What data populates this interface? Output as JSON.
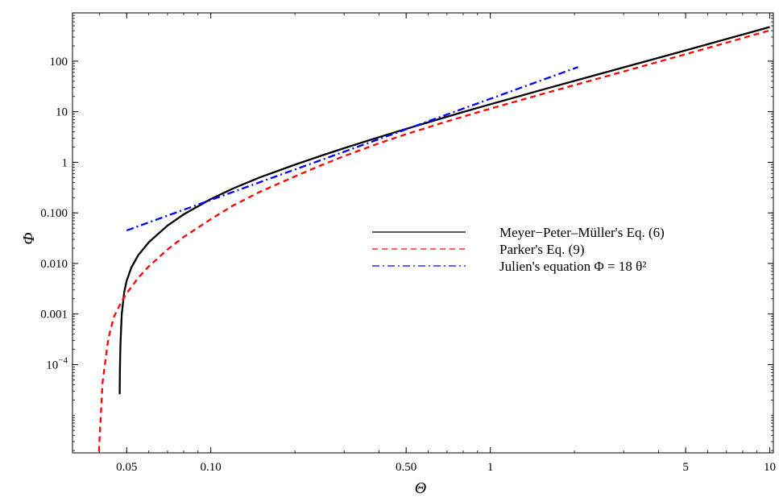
{
  "chart_data": {
    "type": "line",
    "xscale": "log",
    "yscale": "log",
    "xlim": [
      0.032,
      10.3
    ],
    "ylim": [
      1.8e-06,
      900
    ],
    "xlabel": "Θ",
    "ylabel": "Φ",
    "legend_position": "center-right",
    "x_ticks": [
      {
        "value": 0.05,
        "label": "0.05"
      },
      {
        "value": 0.1,
        "label": "0.10"
      },
      {
        "value": 0.5,
        "label": "0.50"
      },
      {
        "value": 1,
        "label": "1"
      },
      {
        "value": 5,
        "label": "5"
      },
      {
        "value": 10,
        "label": "10"
      }
    ],
    "y_ticks": [
      {
        "value": 0.0001,
        "label": "10",
        "sup": "−4"
      },
      {
        "value": 0.001,
        "label": "0.001"
      },
      {
        "value": 0.01,
        "label": "0.010"
      },
      {
        "value": 0.1,
        "label": "0.100"
      },
      {
        "value": 1,
        "label": "1"
      },
      {
        "value": 10,
        "label": "10"
      },
      {
        "value": 100,
        "label": "100"
      }
    ],
    "series": [
      {
        "name": "Meyer−Peter–Müller's Eq. (6)",
        "color": "#000000",
        "dash": "solid",
        "x": [
          0.0472,
          0.0473,
          0.0475,
          0.048,
          0.049,
          0.05,
          0.052,
          0.055,
          0.06,
          0.07,
          0.08,
          0.1,
          0.12,
          0.15,
          0.2,
          0.25,
          0.3,
          0.4,
          0.5,
          0.6,
          0.8,
          1,
          1.5,
          2,
          3,
          4,
          5,
          6,
          8,
          10
        ],
        "y": [
          2.6e-05,
          8.4e-05,
          0.000244,
          0.00098,
          0.00273,
          0.00456,
          0.00838,
          0.01458,
          0.0263,
          0.0561,
          0.0934,
          0.1876,
          0.3027,
          0.5052,
          0.8981,
          1.3671,
          1.9018,
          3.1425,
          4.5807,
          6.1879,
          9.865,
          14.022,
          26.289,
          40.715,
          75.257,
          116.45,
          163.59,
          216.17,
          335.98,
          473.06
        ]
      },
      {
        "name": "Parker's Eq. (9)",
        "color": "#ff0000",
        "dash": "dashed",
        "x": [
          0.0398,
          0.04,
          0.041,
          0.043,
          0.045,
          0.048,
          0.05,
          0.055,
          0.06,
          0.07,
          0.08,
          0.1,
          0.12,
          0.15,
          0.2,
          0.25,
          0.3,
          0.4,
          0.5,
          0.7,
          1,
          1.5,
          2,
          3,
          4,
          5,
          6,
          8,
          10
        ],
        "y": [
          1.9e-06,
          3.5e-06,
          4.5e-05,
          0.00033,
          0.00088,
          0.0018,
          0.00257,
          0.00519,
          0.00876,
          0.0189,
          0.0334,
          0.0752,
          0.1393,
          0.2611,
          0.5263,
          0.8862,
          1.3264,
          2.3794,
          3.5987,
          6.4325,
          11.512,
          21.608,
          33.576,
          62.442,
          97.262,
          137.25,
          182.18,
          285.65,
          405.59
        ]
      },
      {
        "name": "Julien's equation Φ = 18 θ²",
        "color": "#0000ff",
        "dash": "dashdot",
        "x": [
          0.05,
          0.1,
          0.2,
          0.5,
          1,
          2.06
        ],
        "y": [
          0.045,
          0.18,
          0.72,
          4.5,
          18,
          76.38
        ]
      }
    ]
  }
}
